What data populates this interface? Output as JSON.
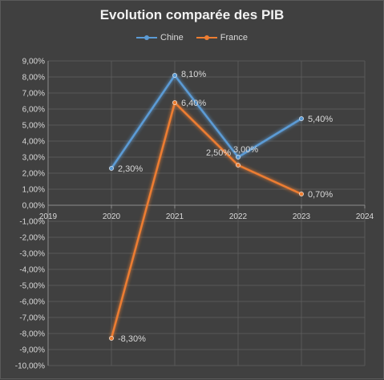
{
  "chart_data": {
    "type": "line",
    "title": "Evolution comparée des PIB",
    "x": [
      2020,
      2021,
      2022,
      2023
    ],
    "xticks": [
      "2019",
      "2020",
      "2021",
      "2022",
      "2023",
      "2024"
    ],
    "xlim": [
      2019,
      2024
    ],
    "ylim": [
      -0.1,
      0.09
    ],
    "ystep": 0.01,
    "yticks": [
      "9,00%",
      "8,00%",
      "7,00%",
      "6,00%",
      "5,00%",
      "4,00%",
      "3,00%",
      "2,00%",
      "1,00%",
      "0,00%",
      "-1,00%",
      "-2,00%",
      "-3,00%",
      "-4,00%",
      "-5,00%",
      "-6,00%",
      "-7,00%",
      "-8,00%",
      "-9,00%",
      "-10,00%"
    ],
    "legend_position": "top",
    "grid": true,
    "series": [
      {
        "name": "Chine",
        "color": "#5b9bd5",
        "values": [
          0.023,
          0.081,
          0.03,
          0.054
        ],
        "labels": [
          "2,30%",
          "8,10%",
          "3,00%",
          "5,40%"
        ]
      },
      {
        "name": "France",
        "color": "#ed7d31",
        "values": [
          -0.083,
          0.064,
          0.025,
          0.007
        ],
        "labels": [
          "-8,30%",
          "6,40%",
          "2,50%",
          "0,70%"
        ]
      }
    ]
  }
}
